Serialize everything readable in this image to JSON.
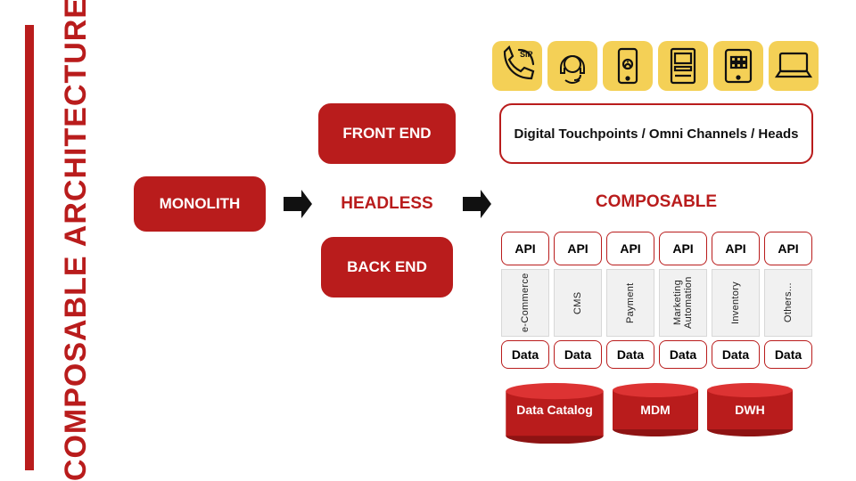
{
  "colors": {
    "red": "#b91c1c",
    "yellow": "#f4d056",
    "grey": "#f1f1f1",
    "grey_border": "#d8d8d8",
    "black": "#111111",
    "white": "#ffffff"
  },
  "title": "COMPOSABLE ARCHITECTURE",
  "monolith": {
    "label": "MONOLITH",
    "fontsize": 17
  },
  "headless": {
    "label": "HEADLESS",
    "fontsize": 19
  },
  "frontend": {
    "label": "FRONT END",
    "fontsize": 17
  },
  "backend": {
    "label": "BACK END",
    "fontsize": 17
  },
  "composable_label": {
    "text": "COMPOSABLE",
    "fontsize": 19
  },
  "touchpoints_label": "Digital Touchpoints / Omni Channels / Heads",
  "icons": [
    {
      "name": "sip-phone-icon"
    },
    {
      "name": "headset-icon"
    },
    {
      "name": "mobile-icon"
    },
    {
      "name": "atm-icon"
    },
    {
      "name": "tablet-icon"
    },
    {
      "name": "laptop-icon"
    }
  ],
  "columns": [
    {
      "api": "API",
      "service": "e-Commerce",
      "data": "Data"
    },
    {
      "api": "API",
      "service": "CMS",
      "data": "Data"
    },
    {
      "api": "API",
      "service": "Payment",
      "data": "Data"
    },
    {
      "api": "API",
      "service": "Marketing Automation",
      "data": "Data"
    },
    {
      "api": "API",
      "service": "Inventory",
      "data": "Data"
    },
    {
      "api": "API",
      "service": "Others...",
      "data": "Data"
    }
  ],
  "cylinders": [
    {
      "label": "Data Catalog",
      "width": 114
    },
    {
      "label": "MDM",
      "width": 100
    },
    {
      "label": "DWH",
      "width": 100
    }
  ],
  "style": {
    "title_fontsize": 34,
    "touchpoints_fontsize": 15,
    "api_fontsize": 14,
    "service_fontsize": 11,
    "cyl_fontsize": 14
  }
}
